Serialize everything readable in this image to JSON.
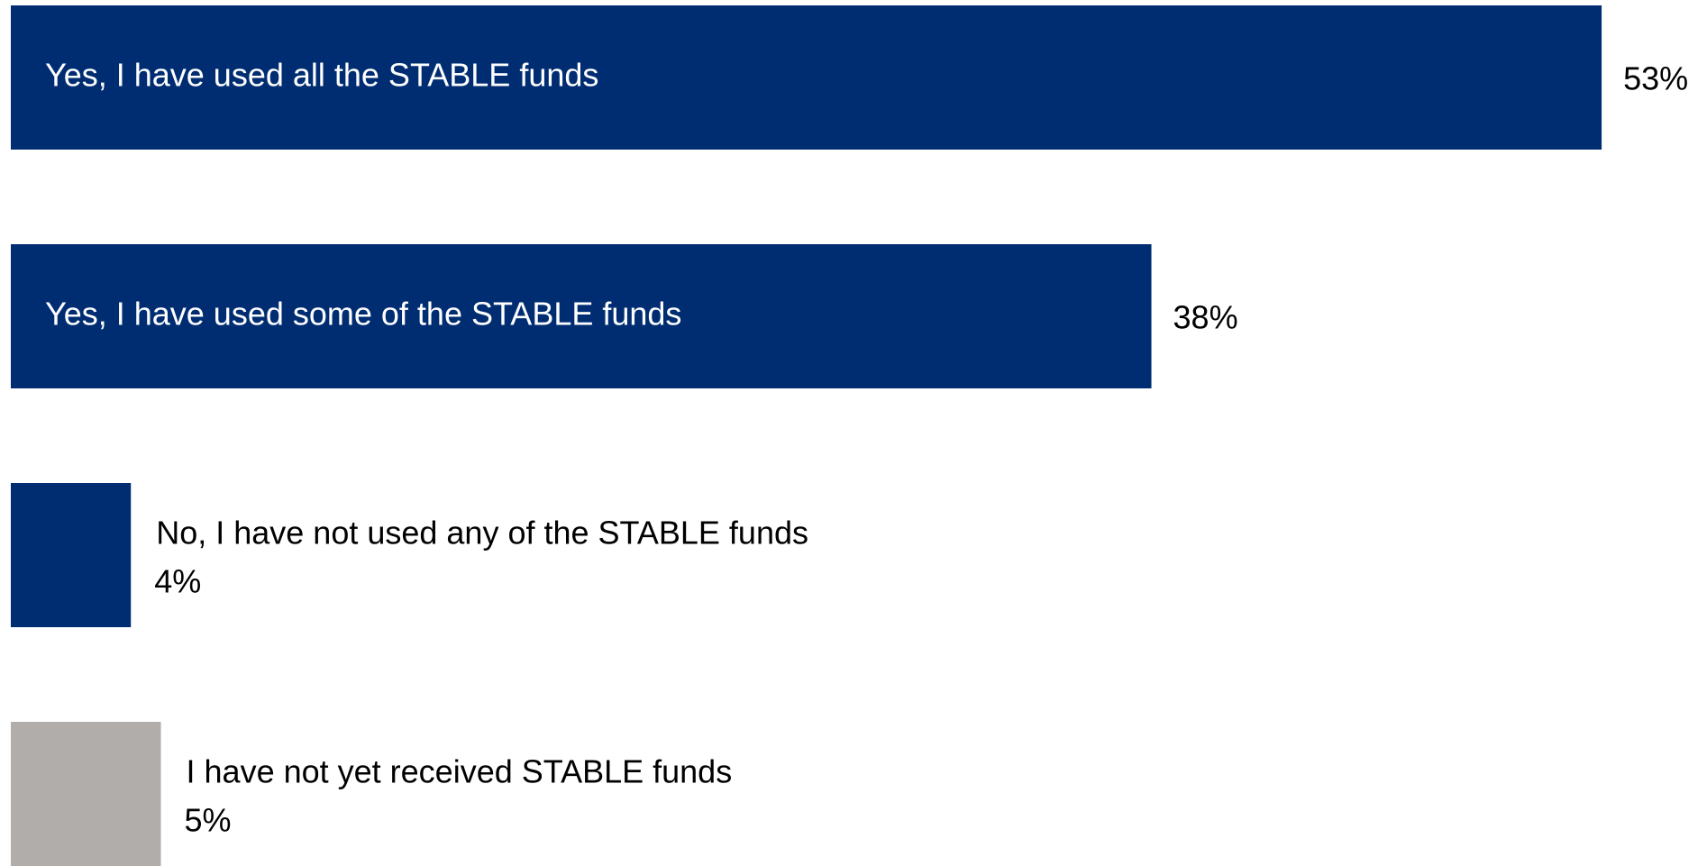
{
  "chart_data": {
    "type": "barh",
    "categories": [
      "Yes, I have used all the STABLE funds",
      "Yes, I have used some of the STABLE funds",
      "No, I have not used any of the STABLE funds",
      "I have not yet received STABLE funds"
    ],
    "values": [
      53,
      38,
      4,
      5
    ],
    "value_labels": [
      "53%",
      "38%",
      "4%",
      "5%"
    ],
    "colors": [
      "#002d72",
      "#002d72",
      "#002d72",
      "#b1adab"
    ],
    "xlim": [
      0,
      56
    ]
  }
}
